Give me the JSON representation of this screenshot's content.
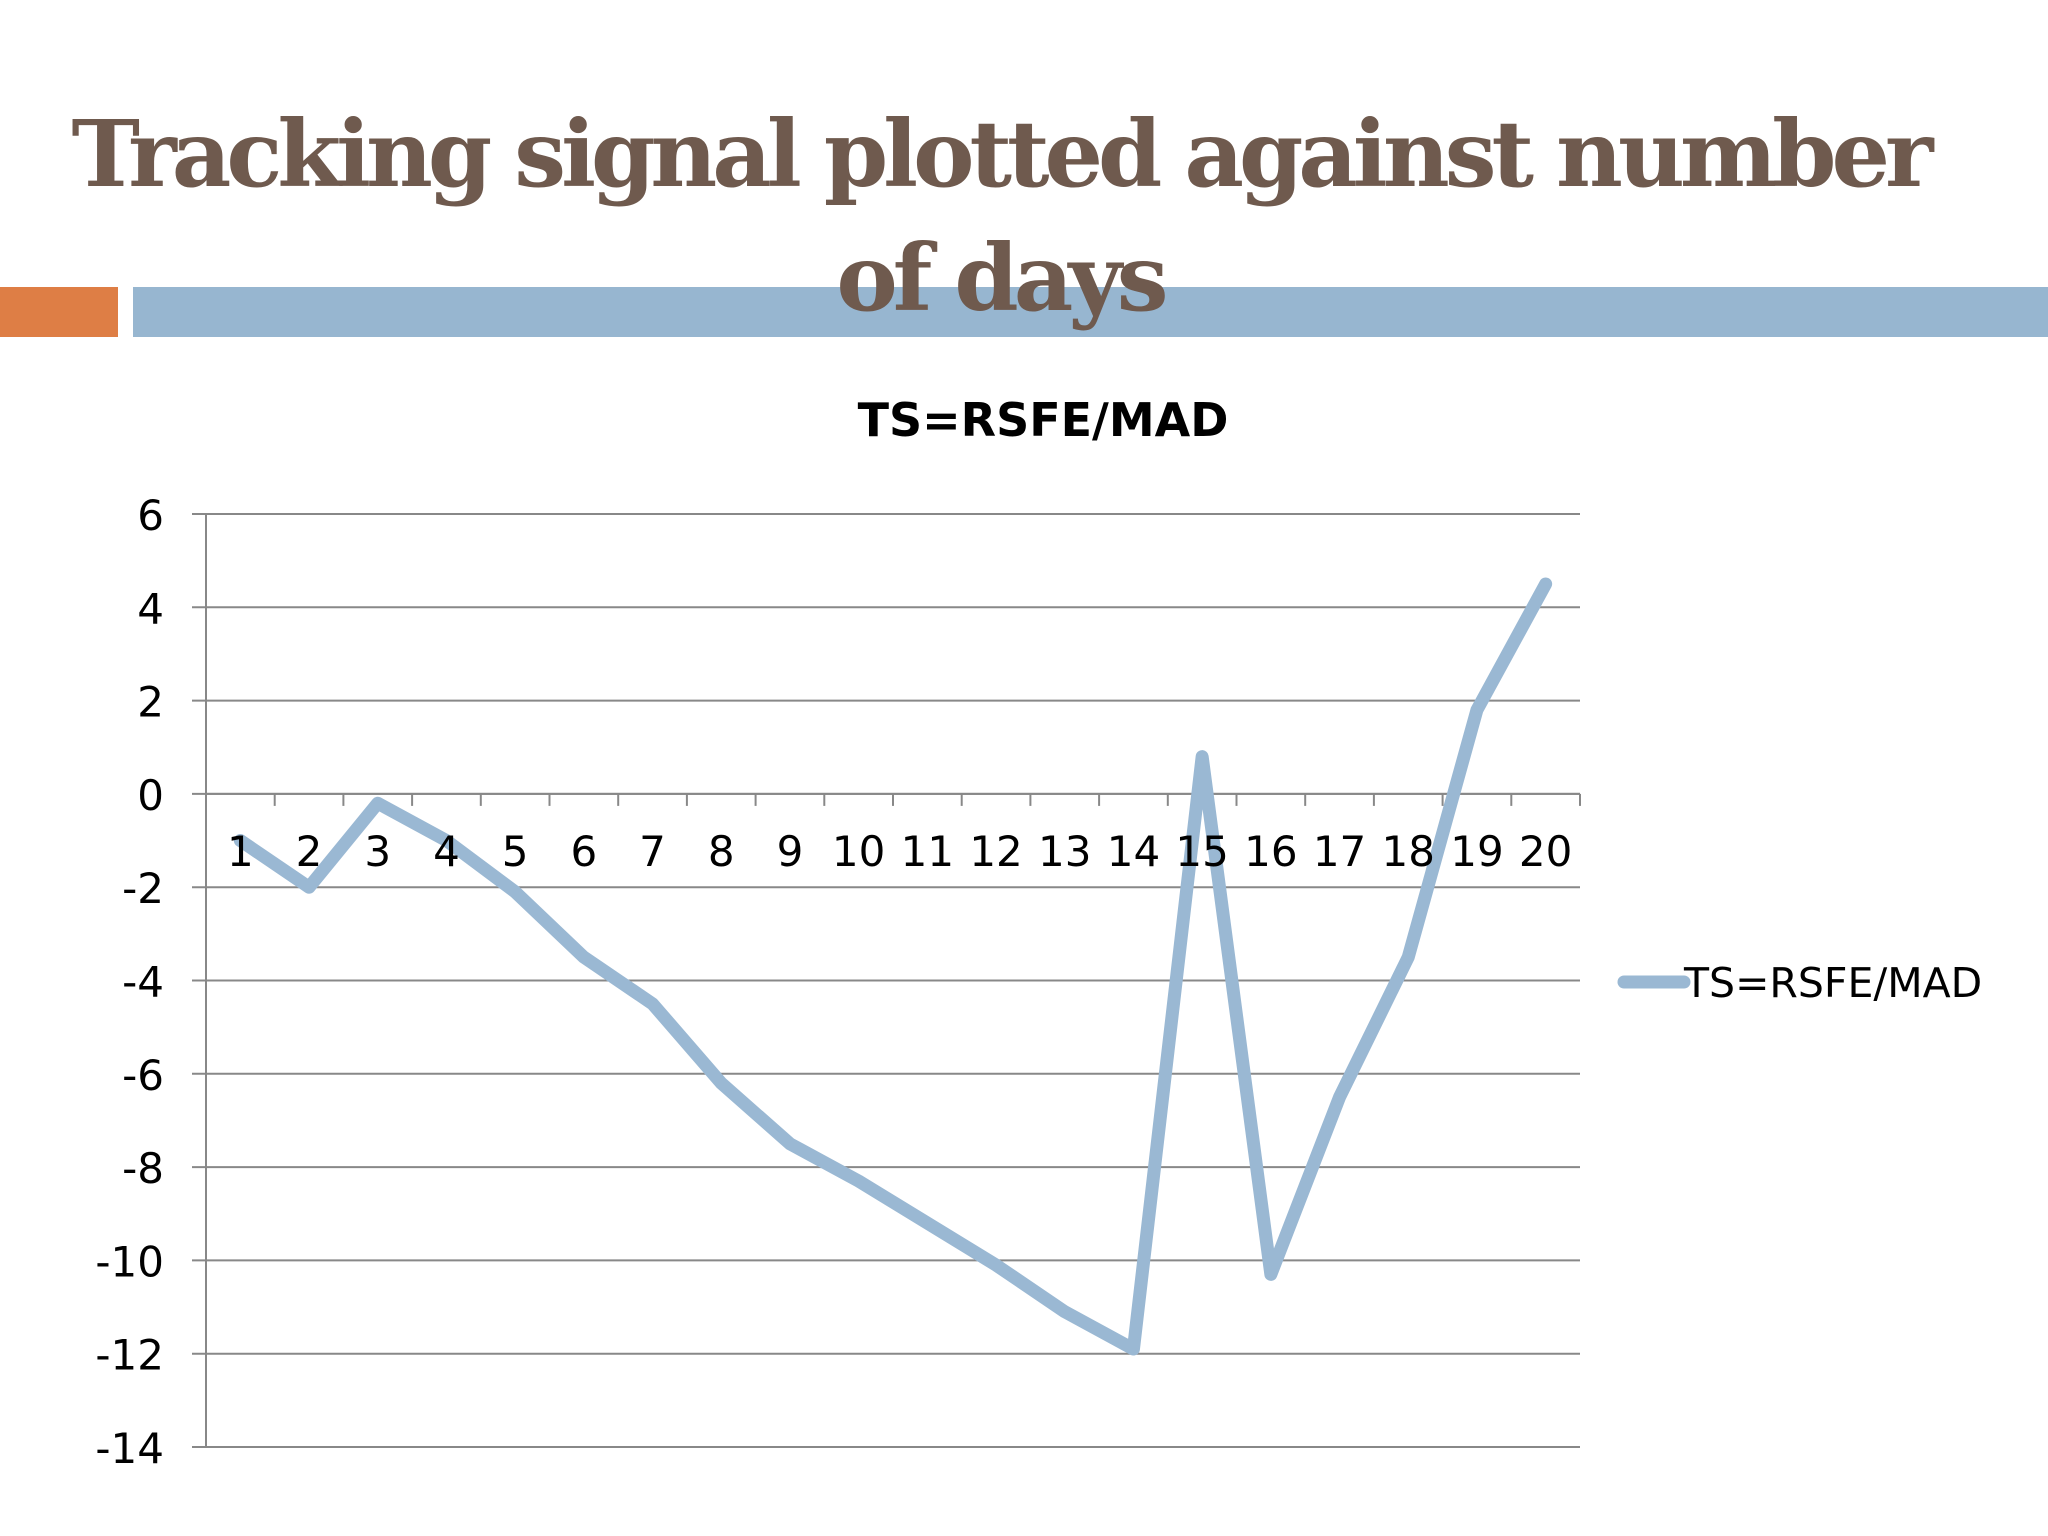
{
  "slide": {
    "title": "Tracking signal plotted against number of days"
  },
  "colors": {
    "title_text": "#6f5a4e",
    "accent_orange": "#de7e45",
    "accent_blue": "#97b6d0",
    "series_line": "#9ab8d3",
    "gridline": "#888888",
    "text": "#000000"
  },
  "chart_data": {
    "type": "line",
    "title": "TS=RSFE/MAD",
    "xlabel": "",
    "ylabel": "",
    "categories": [
      "1",
      "2",
      "3",
      "4",
      "5",
      "6",
      "7",
      "8",
      "9",
      "10",
      "11",
      "12",
      "13",
      "14",
      "15",
      "16",
      "17",
      "18",
      "19",
      "20"
    ],
    "ylim": [
      -14,
      6
    ],
    "yticks": [
      "6",
      "4",
      "2",
      "0",
      "-2",
      "-4",
      "-6",
      "-8",
      "-10",
      "-12",
      "-14"
    ],
    "grid": true,
    "legend": "right",
    "series": [
      {
        "name": "TS=RSFE/MAD",
        "values": [
          -1,
          -2,
          -0.2,
          -1,
          -2.1,
          -3.5,
          -4.5,
          -6.2,
          -7.5,
          -8.3,
          -9.2,
          -10.1,
          -11.1,
          -11.9,
          0.8,
          -10.3,
          -6.5,
          -3.5,
          1.8,
          4.5
        ]
      }
    ]
  }
}
